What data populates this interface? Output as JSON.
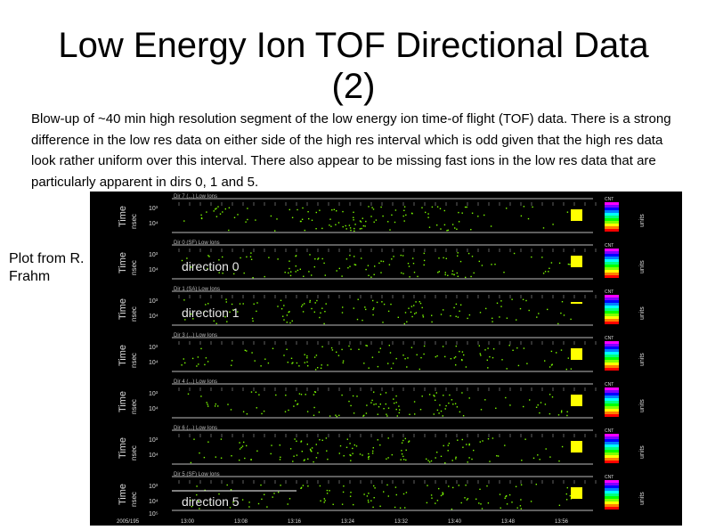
{
  "slide": {
    "title_line1": "Low Energy Ion TOF Directional Data",
    "title_line2": "(2)",
    "description": "Blow-up of ~40 min high resolution segment of the low energy ion time-of flight (TOF) data. There is a strong difference in the low res data on either side of the high res interval which is odd given that the high res data look rather uniform over this interval. There also appear to be missing fast ions in the low res data that are particularly apparent in dirs 0, 1 and 5.",
    "credit": "Plot from R. Frahm"
  },
  "plot": {
    "panel_axis_title": "Time",
    "panel_axis_unit": "nsec",
    "tick_upper": "10³",
    "tick_lower": "10⁴",
    "bottom_tick": "10⁵",
    "colorbar_label": "CNT",
    "colorbar_unit": "units",
    "panel_headers": [
      "Dir 7 (...) Low Ions",
      "Dir 0 (SF) Low Ions",
      "Dir 1 (SA) Low Ions",
      "Dir 3 (...) Low Ions",
      "Dir 4 (...) Low Ions",
      "Dir 6 (...) Low Ions",
      "Dir 5 (SF) Low Ions"
    ],
    "time_labels": [
      "13:00",
      "13:08",
      "13:16",
      "13:24",
      "13:32",
      "13:40",
      "13:48",
      "13:56"
    ],
    "date_label": "2005/195",
    "direction_labels": [
      "direction 0",
      "direction 1",
      "direction 5"
    ],
    "colors": {
      "background": "#000000",
      "data": "#7CFC00",
      "text": "#dddddd",
      "marker": "#ffff00"
    }
  }
}
